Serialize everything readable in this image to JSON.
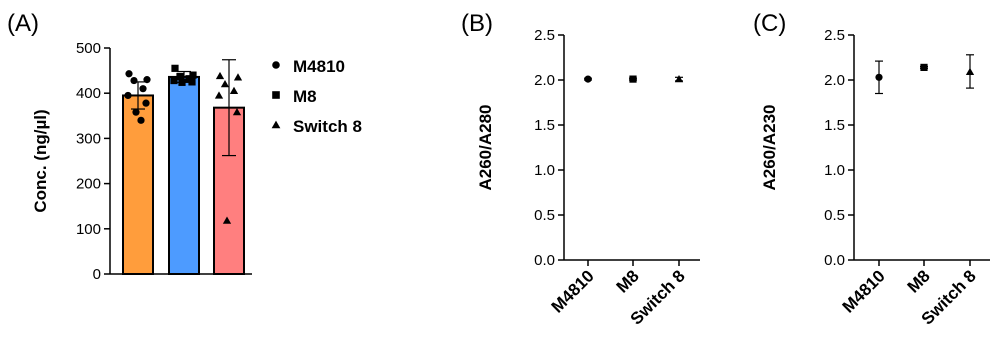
{
  "chart_data": [
    {
      "panel": "(A)",
      "type": "bar",
      "ylabel": "Conc. (ng/µl)",
      "ylim": [
        0,
        500
      ],
      "yticks": [
        0,
        100,
        200,
        300,
        400,
        500
      ],
      "categories": [
        "M4810",
        "M8",
        "Switch 8"
      ],
      "series": [
        {
          "name": "M4810",
          "marker": "circle",
          "color": "#ff9d3c",
          "mean": 395,
          "error": [
            365,
            425
          ],
          "points": [
            443,
            430,
            428,
            410,
            395,
            378,
            358,
            340
          ]
        },
        {
          "name": "M8",
          "marker": "square",
          "color": "#4d9bff",
          "mean": 436,
          "error": [
            424,
            448
          ],
          "points": [
            455,
            440,
            437,
            432,
            428,
            425,
            424
          ]
        },
        {
          "name": "Switch 8",
          "marker": "triangle",
          "color": "#ff7f7f",
          "mean": 368,
          "error": [
            262,
            474
          ],
          "points": [
            438,
            435,
            420,
            405,
            395,
            358,
            118
          ]
        }
      ],
      "legend_position": "right"
    },
    {
      "panel": "(B)",
      "type": "scatter",
      "ylabel": "A260/A280",
      "ylim": [
        0,
        2.5
      ],
      "yticks": [
        "0.0",
        "0.5",
        "1.0",
        "1.5",
        "2.0",
        "2.5"
      ],
      "categories": [
        "M4810",
        "M8",
        "Switch 8"
      ],
      "points": [
        {
          "category": "M4810",
          "marker": "circle",
          "value": 2.01,
          "error": [
            2.0,
            2.02
          ]
        },
        {
          "category": "M8",
          "marker": "square",
          "value": 2.01,
          "error": [
            2.0,
            2.02
          ]
        },
        {
          "category": "Switch 8",
          "marker": "triangle",
          "value": 2.01,
          "error": [
            1.99,
            2.03
          ]
        }
      ]
    },
    {
      "panel": "(C)",
      "type": "scatter",
      "ylabel": "A260/A230",
      "ylim": [
        0,
        2.5
      ],
      "yticks": [
        "0.0",
        "0.5",
        "1.0",
        "1.5",
        "2.0",
        "2.5"
      ],
      "categories": [
        "M4810",
        "M8",
        "Switch 8"
      ],
      "points": [
        {
          "category": "M4810",
          "marker": "circle",
          "value": 2.03,
          "error": [
            1.85,
            2.21
          ]
        },
        {
          "category": "M8",
          "marker": "square",
          "value": 2.14,
          "error": [
            2.13,
            2.15
          ]
        },
        {
          "category": "Switch 8",
          "marker": "triangle",
          "value": 2.09,
          "error": [
            1.91,
            2.28
          ]
        }
      ]
    }
  ]
}
